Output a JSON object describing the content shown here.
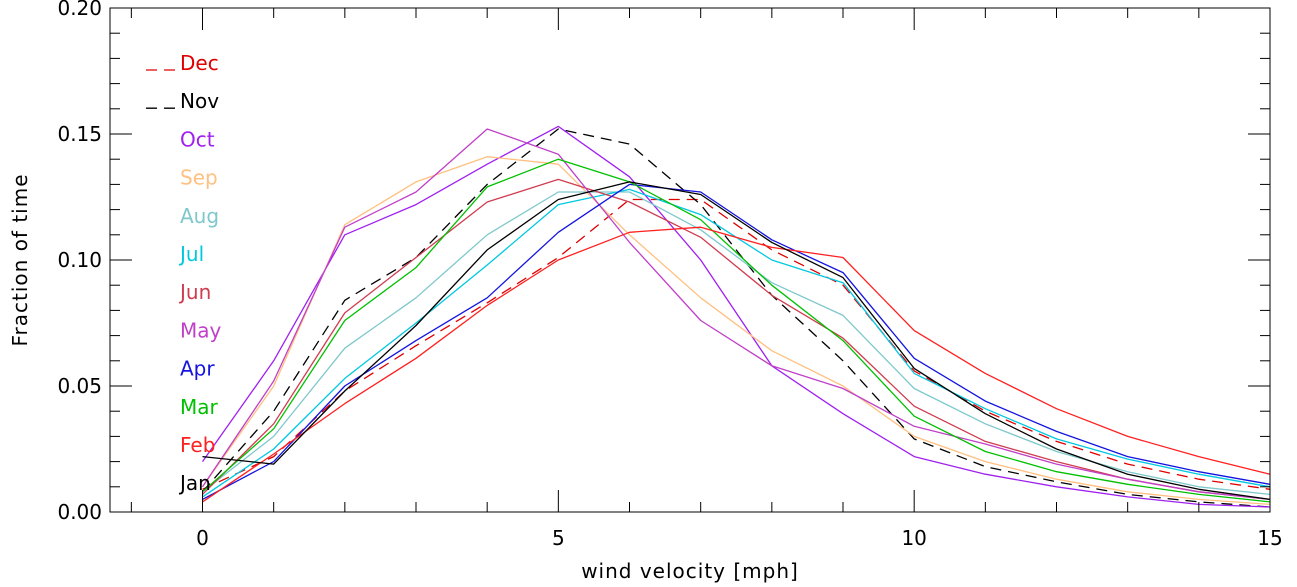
{
  "chart_data": {
    "type": "line",
    "title": "",
    "xlabel": "wind velocity [mph]",
    "ylabel": "Fraction of time",
    "xlim": [
      -1.3,
      15
    ],
    "ylim": [
      0,
      0.2
    ],
    "x_ticks": [
      0,
      5,
      10,
      15
    ],
    "x_tick_labels": [
      "0",
      "5",
      "10",
      "15"
    ],
    "y_ticks": [
      0,
      0.05,
      0.1,
      0.15,
      0.2
    ],
    "y_tick_labels": [
      "0.00",
      "0.05",
      "0.10",
      "0.15",
      "0.20"
    ],
    "grid": false,
    "legend_position": "top-left",
    "x": [
      0,
      1,
      2,
      3,
      4,
      5,
      6,
      7,
      8,
      9,
      10,
      11,
      12,
      13,
      14,
      15
    ],
    "series": [
      {
        "name": "Dec",
        "color": "#e00000",
        "dashed": true,
        "values": [
          0.009,
          0.022,
          0.048,
          0.066,
          0.083,
          0.101,
          0.124,
          0.124,
          0.104,
          0.09,
          0.056,
          0.04,
          0.028,
          0.019,
          0.013,
          0.009
        ]
      },
      {
        "name": "Nov",
        "color": "#000000",
        "dashed": true,
        "values": [
          0.008,
          0.04,
          0.084,
          0.101,
          0.13,
          0.152,
          0.146,
          0.122,
          0.086,
          0.06,
          0.029,
          0.018,
          0.012,
          0.007,
          0.004,
          0.002
        ]
      },
      {
        "name": "Oct",
        "color": "#a020f0",
        "dashed": false,
        "values": [
          0.02,
          0.06,
          0.11,
          0.122,
          0.138,
          0.153,
          0.133,
          0.1,
          0.058,
          0.039,
          0.022,
          0.015,
          0.01,
          0.006,
          0.003,
          0.002
        ]
      },
      {
        "name": "Sep",
        "color": "#ffc080",
        "dashed": false,
        "values": [
          0.01,
          0.05,
          0.114,
          0.131,
          0.141,
          0.138,
          0.11,
          0.085,
          0.064,
          0.05,
          0.03,
          0.02,
          0.013,
          0.008,
          0.005,
          0.003
        ]
      },
      {
        "name": "Aug",
        "color": "#7ec8cc",
        "dashed": false,
        "values": [
          0.008,
          0.03,
          0.065,
          0.085,
          0.11,
          0.127,
          0.127,
          0.112,
          0.091,
          0.078,
          0.049,
          0.035,
          0.024,
          0.016,
          0.01,
          0.007
        ]
      },
      {
        "name": "Jul",
        "color": "#00c8e0",
        "dashed": false,
        "values": [
          0.006,
          0.025,
          0.053,
          0.075,
          0.098,
          0.122,
          0.128,
          0.118,
          0.1,
          0.091,
          0.055,
          0.041,
          0.029,
          0.021,
          0.015,
          0.01
        ]
      },
      {
        "name": "Jun",
        "color": "#d03c50",
        "dashed": false,
        "values": [
          0.007,
          0.035,
          0.079,
          0.101,
          0.123,
          0.132,
          0.123,
          0.109,
          0.086,
          0.069,
          0.042,
          0.028,
          0.02,
          0.013,
          0.008,
          0.005
        ]
      },
      {
        "name": "May",
        "color": "#c040c8",
        "dashed": false,
        "values": [
          0.01,
          0.052,
          0.113,
          0.127,
          0.152,
          0.142,
          0.107,
          0.076,
          0.058,
          0.049,
          0.034,
          0.027,
          0.019,
          0.013,
          0.008,
          0.005
        ]
      },
      {
        "name": "Apr",
        "color": "#1414e0",
        "dashed": false,
        "values": [
          0.005,
          0.02,
          0.05,
          0.068,
          0.085,
          0.111,
          0.13,
          0.127,
          0.108,
          0.095,
          0.061,
          0.044,
          0.032,
          0.022,
          0.016,
          0.011
        ]
      },
      {
        "name": "Mar",
        "color": "#00c000",
        "dashed": false,
        "values": [
          0.008,
          0.033,
          0.076,
          0.097,
          0.129,
          0.14,
          0.131,
          0.116,
          0.09,
          0.068,
          0.038,
          0.024,
          0.016,
          0.011,
          0.007,
          0.004
        ]
      },
      {
        "name": "Feb",
        "color": "#ff2020",
        "dashed": false,
        "values": [
          0.004,
          0.023,
          0.043,
          0.061,
          0.082,
          0.1,
          0.111,
          0.113,
          0.105,
          0.101,
          0.072,
          0.055,
          0.041,
          0.03,
          0.022,
          0.015
        ]
      },
      {
        "name": "Jan",
        "color": "#000000",
        "dashed": false,
        "values": [
          0.022,
          0.019,
          0.048,
          0.074,
          0.104,
          0.124,
          0.131,
          0.126,
          0.107,
          0.093,
          0.057,
          0.039,
          0.025,
          0.015,
          0.009,
          0.005
        ]
      }
    ]
  }
}
